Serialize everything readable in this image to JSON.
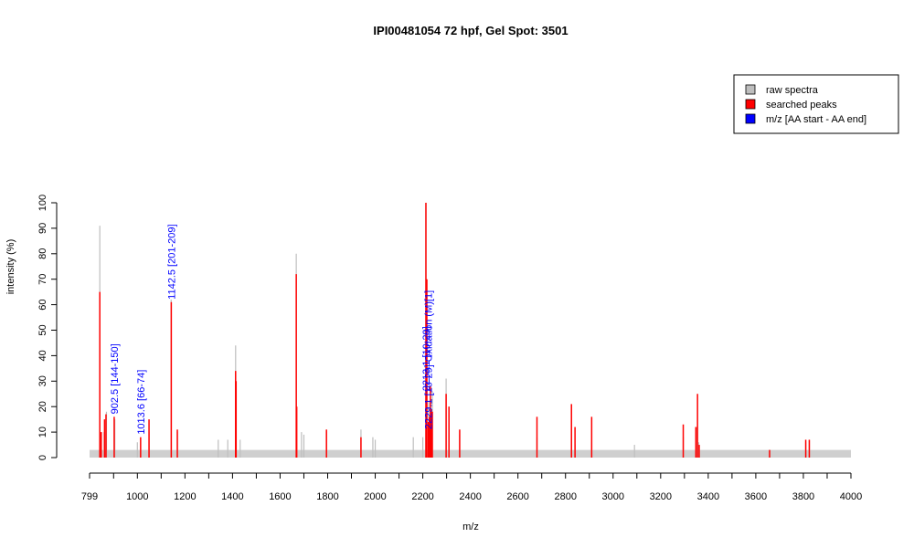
{
  "chart_data": {
    "type": "bar",
    "title": "IPI00481054  72 hpf, Gel Spot: 3501",
    "xlabel": "m/z",
    "ylabel": "intensity (%)",
    "xlim": [
      799,
      4000
    ],
    "ylim": [
      0,
      100
    ],
    "x_ticks": [
      799,
      1000,
      1200,
      1400,
      1600,
      1800,
      2000,
      2200,
      2400,
      2600,
      2800,
      3000,
      3200,
      3400,
      3600,
      3800,
      4000
    ],
    "y_ticks": [
      0,
      10,
      20,
      30,
      40,
      50,
      60,
      70,
      80,
      90,
      100
    ],
    "grid": false,
    "legend_position": "top-right",
    "legend": [
      {
        "label": "raw spectra",
        "color": "#bebebe"
      },
      {
        "label": "searched peaks",
        "color": "#ff0000"
      },
      {
        "label": "m/z [AA start - AA end]",
        "color": "#0000ff"
      }
    ],
    "series": [
      {
        "name": "raw spectra",
        "color": "#bebebe",
        "x": [
          842,
          860,
          870,
          905,
          1000,
          1049,
          1142,
          1168,
          1340,
          1380,
          1413,
          1432,
          1668,
          1690,
          1700,
          1795,
          1940,
          1990,
          2000,
          2160,
          2200,
          2213,
          2225,
          2240,
          2298,
          2310,
          2355,
          2680,
          2825,
          2840,
          2910,
          3090,
          3295,
          3350,
          3360,
          3658,
          3810,
          3825
        ],
        "values": [
          91,
          10,
          18,
          15,
          6,
          10,
          62,
          10,
          7,
          7,
          44,
          7,
          80,
          10,
          9,
          10,
          11,
          8,
          7,
          8,
          8,
          100,
          22,
          26,
          31,
          20,
          9,
          8,
          7,
          5,
          6,
          5,
          8,
          12,
          6,
          3,
          6,
          7
        ]
      },
      {
        "name": "searched peaks",
        "color": "#ff0000",
        "x": [
          842,
          848,
          862,
          868,
          902.5,
          1013.6,
          1049,
          1142.5,
          1168,
          1413,
          1415,
          1668,
          1670,
          1795,
          1940,
          2213.1,
          2217,
          2223.1,
          2228,
          2232,
          2236,
          2240,
          2298,
          2310,
          2355,
          2680,
          2825,
          2840,
          2910,
          3295,
          3348,
          3355,
          3362,
          3658,
          3810,
          3825
        ],
        "values": [
          65,
          10,
          15,
          17,
          16,
          8,
          15,
          61,
          11,
          34,
          30,
          72,
          20,
          11,
          8,
          100,
          70,
          14,
          16,
          28,
          19,
          18,
          25,
          20,
          11,
          16,
          21,
          12,
          16,
          13,
          12,
          25,
          5,
          3,
          7,
          7
        ]
      }
    ],
    "annotations": [
      {
        "x": 902.5,
        "y": 16,
        "text": "902.5 [144-150]"
      },
      {
        "x": 1013.6,
        "y": 8,
        "text": "1013.6 [66-74]"
      },
      {
        "x": 1142.5,
        "y": 61,
        "text": "1142.5 [201-209]"
      },
      {
        "x": 2213.1,
        "y": 25,
        "text": "2213.1 [10-29]"
      },
      {
        "x": 2223.1,
        "y": 10,
        "text": "2229.1 [10-29]  Oxidation (M)[1]"
      }
    ]
  }
}
